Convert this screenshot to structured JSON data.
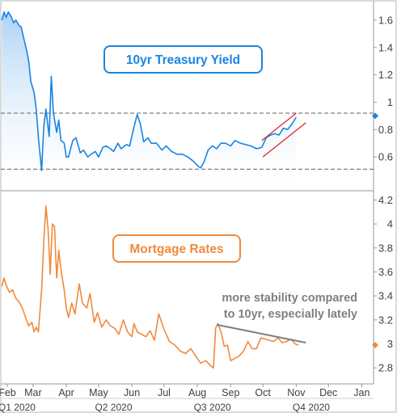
{
  "chart_data": [
    {
      "type": "area",
      "title": "10yr Treasury Yield",
      "ylim": [
        0.4,
        1.7
      ],
      "yticks": [
        0.6,
        0.8,
        1,
        1.2,
        1.4,
        1.6
      ],
      "ytick_labels": [
        "0.6",
        "0.8",
        "1",
        "1.2",
        "1.4",
        "1.6"
      ],
      "current_marker_value": 0.9,
      "colors": {
        "line": "#1a84e0",
        "title_border": "#1a84e0",
        "title_text": "#1a84e0",
        "area_top": "#a9d0f5",
        "area_bottom": "#ffffff"
      },
      "reference_lines": [
        {
          "y": 0.92,
          "style": "dashed"
        },
        {
          "y": 0.51,
          "style": "dashed"
        }
      ],
      "channel_lines": [
        {
          "x": [
            "2020-09-30",
            "2020-11-01"
          ],
          "y": [
            0.72,
            0.92
          ],
          "color": "#e0202a"
        },
        {
          "x": [
            "2020-10-01",
            "2020-11-10"
          ],
          "y": [
            0.6,
            0.85
          ],
          "color": "#e0202a"
        }
      ],
      "series": [
        {
          "x": [
            "2020-02-01",
            "2020-02-03",
            "2020-02-05",
            "2020-02-07",
            "2020-02-10",
            "2020-02-12",
            "2020-02-14",
            "2020-02-17",
            "2020-02-19",
            "2020-02-21",
            "2020-02-24",
            "2020-02-26",
            "2020-02-28",
            "2020-03-02",
            "2020-03-04",
            "2020-03-06",
            "2020-03-09",
            "2020-03-11",
            "2020-03-13",
            "2020-03-16",
            "2020-03-18",
            "2020-03-20",
            "2020-03-23",
            "2020-03-25",
            "2020-03-27",
            "2020-03-30",
            "2020-04-01",
            "2020-04-03",
            "2020-04-07",
            "2020-04-10",
            "2020-04-14",
            "2020-04-17",
            "2020-04-21",
            "2020-04-24",
            "2020-04-28",
            "2020-05-01",
            "2020-05-05",
            "2020-05-08",
            "2020-05-12",
            "2020-05-15",
            "2020-05-19",
            "2020-05-22",
            "2020-05-27",
            "2020-05-30",
            "2020-06-03",
            "2020-06-06",
            "2020-06-09",
            "2020-06-12",
            "2020-06-16",
            "2020-06-19",
            "2020-06-24",
            "2020-06-29",
            "2020-07-03",
            "2020-07-08",
            "2020-07-13",
            "2020-07-18",
            "2020-07-23",
            "2020-07-28",
            "2020-08-02",
            "2020-08-04",
            "2020-08-07",
            "2020-08-11",
            "2020-08-15",
            "2020-08-19",
            "2020-08-23",
            "2020-08-27",
            "2020-09-01",
            "2020-09-05",
            "2020-09-10",
            "2020-09-15",
            "2020-09-20",
            "2020-09-25",
            "2020-09-30",
            "2020-10-04",
            "2020-10-08",
            "2020-10-12",
            "2020-10-16",
            "2020-10-20",
            "2020-10-24",
            "2020-10-28",
            "2020-11-01"
          ],
          "values": [
            1.6,
            1.66,
            1.62,
            1.66,
            1.62,
            1.58,
            1.6,
            1.56,
            1.55,
            1.48,
            1.38,
            1.3,
            1.15,
            1.07,
            0.95,
            0.74,
            0.5,
            0.82,
            0.95,
            0.75,
            1.19,
            0.92,
            0.78,
            0.87,
            0.72,
            0.7,
            0.6,
            0.6,
            0.72,
            0.74,
            0.63,
            0.65,
            0.6,
            0.62,
            0.64,
            0.6,
            0.67,
            0.68,
            0.66,
            0.64,
            0.7,
            0.66,
            0.69,
            0.68,
            0.82,
            0.91,
            0.84,
            0.71,
            0.74,
            0.7,
            0.7,
            0.65,
            0.68,
            0.64,
            0.62,
            0.62,
            0.6,
            0.57,
            0.53,
            0.52,
            0.56,
            0.65,
            0.68,
            0.66,
            0.7,
            0.7,
            0.68,
            0.72,
            0.7,
            0.69,
            0.68,
            0.66,
            0.67,
            0.74,
            0.76,
            0.77,
            0.76,
            0.81,
            0.8,
            0.84,
            0.89
          ]
        }
      ]
    },
    {
      "type": "line",
      "title": "Mortgage Rates",
      "ylim": [
        2.7,
        4.25
      ],
      "yticks": [
        2.8,
        3,
        3.2,
        3.4,
        3.6,
        3.8,
        4,
        4.2
      ],
      "ytick_labels": [
        "2.8",
        "3",
        "3.2",
        "3.4",
        "3.6",
        "3.8",
        "4",
        "4.2"
      ],
      "current_marker_value": 2.99,
      "colors": {
        "line": "#f08a3c",
        "title_border": "#f08a3c",
        "title_text": "#f08a3c",
        "trend": "#7f7f7f",
        "annotation": "#7f7f7f"
      },
      "annotation": [
        "more stability compared",
        "to 10yr, especially lately"
      ],
      "trend_line": {
        "x": [
          "2020-08-19",
          "2020-11-10"
        ],
        "y": [
          3.16,
          3.01
        ]
      },
      "series": [
        {
          "x": [
            "2020-02-01",
            "2020-02-03",
            "2020-02-05",
            "2020-02-08",
            "2020-02-11",
            "2020-02-14",
            "2020-02-17",
            "2020-02-20",
            "2020-02-23",
            "2020-02-26",
            "2020-02-29",
            "2020-03-02",
            "2020-03-04",
            "2020-03-06",
            "2020-03-09",
            "2020-03-11",
            "2020-03-13",
            "2020-03-15",
            "2020-03-17",
            "2020-03-19",
            "2020-03-21",
            "2020-03-23",
            "2020-03-25",
            "2020-03-27",
            "2020-03-30",
            "2020-04-01",
            "2020-04-03",
            "2020-04-06",
            "2020-04-09",
            "2020-04-13",
            "2020-04-16",
            "2020-04-20",
            "2020-04-23",
            "2020-04-27",
            "2020-04-30",
            "2020-05-04",
            "2020-05-08",
            "2020-05-12",
            "2020-05-16",
            "2020-05-20",
            "2020-05-24",
            "2020-05-28",
            "2020-06-01",
            "2020-06-03",
            "2020-06-06",
            "2020-06-10",
            "2020-06-14",
            "2020-06-18",
            "2020-06-22",
            "2020-06-26",
            "2020-07-01",
            "2020-07-06",
            "2020-07-11",
            "2020-07-16",
            "2020-07-21",
            "2020-07-26",
            "2020-07-31",
            "2020-08-04",
            "2020-08-09",
            "2020-08-13",
            "2020-08-16",
            "2020-08-18",
            "2020-08-20",
            "2020-08-23",
            "2020-08-26",
            "2020-08-29",
            "2020-09-01",
            "2020-09-05",
            "2020-09-09",
            "2020-09-13",
            "2020-09-17",
            "2020-09-21",
            "2020-09-25",
            "2020-09-29",
            "2020-10-03",
            "2020-10-07",
            "2020-10-11",
            "2020-10-15",
            "2020-10-19",
            "2020-10-23",
            "2020-10-27",
            "2020-10-31",
            "2020-11-03"
          ],
          "values": [
            3.48,
            3.55,
            3.49,
            3.43,
            3.45,
            3.38,
            3.35,
            3.3,
            3.22,
            3.15,
            3.18,
            3.1,
            3.14,
            3.1,
            3.45,
            3.85,
            4.15,
            3.95,
            3.58,
            4.0,
            3.98,
            3.55,
            3.78,
            3.62,
            3.45,
            3.3,
            3.22,
            3.34,
            3.25,
            3.5,
            3.34,
            3.3,
            3.42,
            3.18,
            3.26,
            3.14,
            3.2,
            3.15,
            3.13,
            3.08,
            3.2,
            3.1,
            3.06,
            3.17,
            3.1,
            3.08,
            3.06,
            3.11,
            3.03,
            3.25,
            3.12,
            3.02,
            2.99,
            2.94,
            2.92,
            2.96,
            2.89,
            2.84,
            2.86,
            2.82,
            2.8,
            3.13,
            3.17,
            3.1,
            2.98,
            2.99,
            2.86,
            2.88,
            2.9,
            2.94,
            3.02,
            2.96,
            2.96,
            3.05,
            3.04,
            3.03,
            3.02,
            3.05,
            3.01,
            3.02,
            3.04,
            3.0,
            2.99
          ]
        }
      ]
    }
  ],
  "x_axis": {
    "month_labels": [
      {
        "label": "Feb",
        "date": "2020-02-06"
      },
      {
        "label": "Mar",
        "date": "2020-03-01"
      },
      {
        "label": "Apr",
        "date": "2020-04-01"
      },
      {
        "label": "May",
        "date": "2020-05-01"
      },
      {
        "label": "Jun",
        "date": "2020-06-01"
      },
      {
        "label": "Jul",
        "date": "2020-07-01"
      },
      {
        "label": "Aug",
        "date": "2020-08-01"
      },
      {
        "label": "Sep",
        "date": "2020-09-01"
      },
      {
        "label": "Oct",
        "date": "2020-10-01"
      },
      {
        "label": "Nov",
        "date": "2020-11-01"
      },
      {
        "label": "Dec",
        "date": "2020-12-01"
      },
      {
        "label": "Jan",
        "date": "2021-01-01"
      }
    ],
    "quarter_labels": [
      {
        "label": "Q1 2020",
        "date": "2020-02-15"
      },
      {
        "label": "Q2 2020",
        "date": "2020-05-15"
      },
      {
        "label": "Q3 2020",
        "date": "2020-08-15"
      },
      {
        "label": "Q4 2020",
        "date": "2020-11-15"
      }
    ],
    "xlim": [
      "2020-01-31",
      "2021-01-12"
    ]
  }
}
